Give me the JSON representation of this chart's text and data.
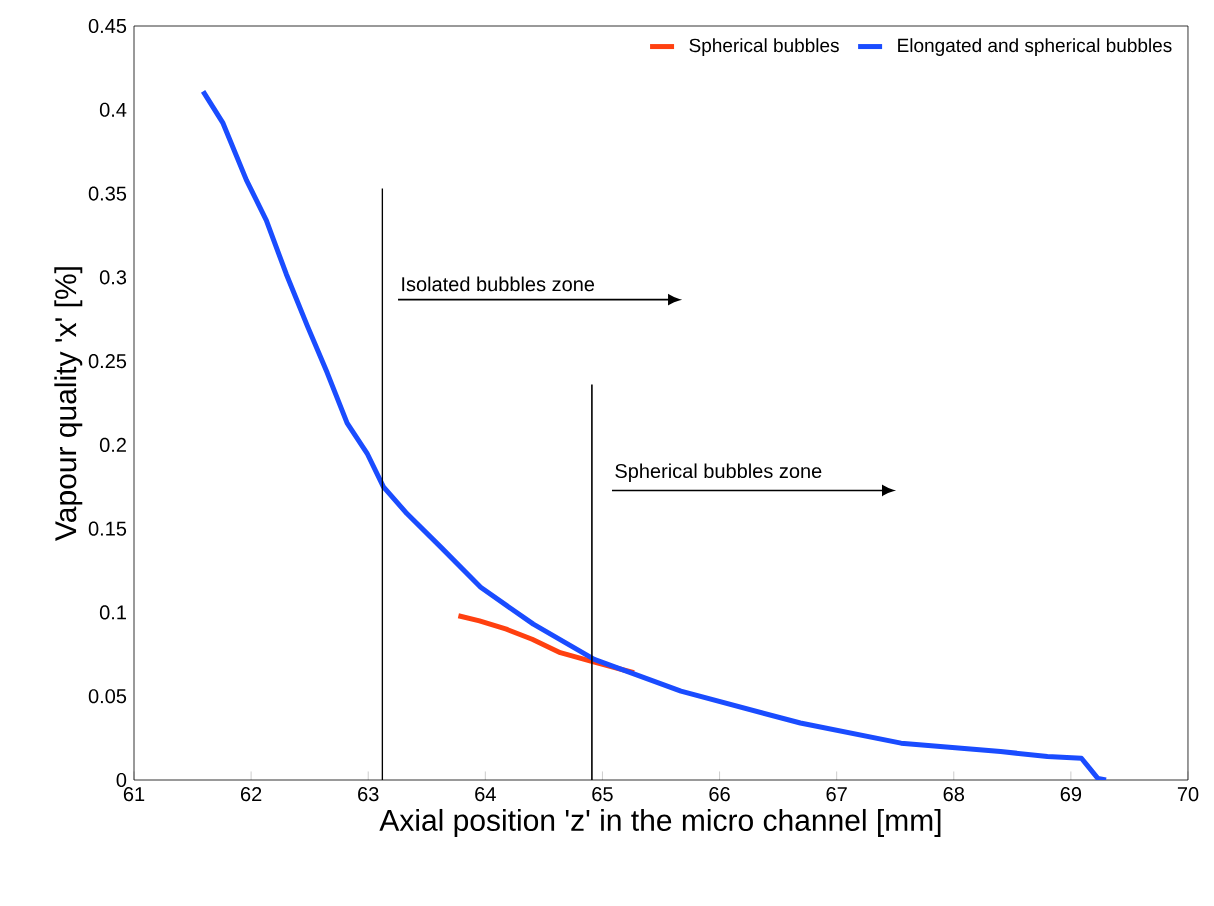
{
  "chart_data": {
    "type": "line",
    "xlabel": "Axial position 'z' in the micro channel [mm]",
    "ylabel": "Vapour quality 'x' [%]",
    "xlim": [
      61,
      70
    ],
    "ylim": [
      0,
      0.45
    ],
    "xticks": [
      61,
      62,
      63,
      64,
      65,
      66,
      67,
      68,
      69,
      70
    ],
    "yticks": [
      0,
      0.05,
      0.1,
      0.15,
      0.2,
      0.25,
      0.3,
      0.35,
      0.4,
      0.45
    ],
    "legend": "top right",
    "grid": false,
    "marker": "none",
    "line_style": "solid",
    "series": [
      {
        "name": "Spherical bubbles",
        "color": "#ff4010",
        "x": [
          63.77,
          63.95,
          64.18,
          64.4,
          64.64,
          64.9,
          65.27
        ],
        "values": [
          0.098,
          0.095,
          0.09,
          0.084,
          0.076,
          0.071,
          0.064
        ]
      },
      {
        "name": "Elongated and spherical bubbles",
        "color": "#1a4cff",
        "x": [
          61.59,
          61.76,
          61.96,
          62.13,
          62.3,
          62.48,
          62.65,
          62.82,
          62.99,
          63.13,
          63.33,
          63.62,
          63.96,
          64.41,
          64.93,
          65.67,
          66.69,
          67.55,
          68.4,
          68.8,
          69.09,
          69.23,
          69.3
        ],
        "values": [
          0.411,
          0.392,
          0.358,
          0.334,
          0.302,
          0.271,
          0.243,
          0.213,
          0.195,
          0.175,
          0.159,
          0.139,
          0.115,
          0.093,
          0.072,
          0.053,
          0.034,
          0.022,
          0.017,
          0.014,
          0.013,
          0.001,
          0.0
        ]
      },
      {
        "type": "line",
        "color": "#000000",
        "x": [
          63.12,
          63.12
        ],
        "values": [
          0,
          0.353
        ]
      },
      {
        "type": "line",
        "color": "#000000",
        "x": [
          64.91,
          64.91
        ],
        "values": [
          0,
          0.236
        ]
      }
    ],
    "annotations": [
      "Isolated  bubbles zone",
      "Spherical bubbles zone"
    ]
  }
}
